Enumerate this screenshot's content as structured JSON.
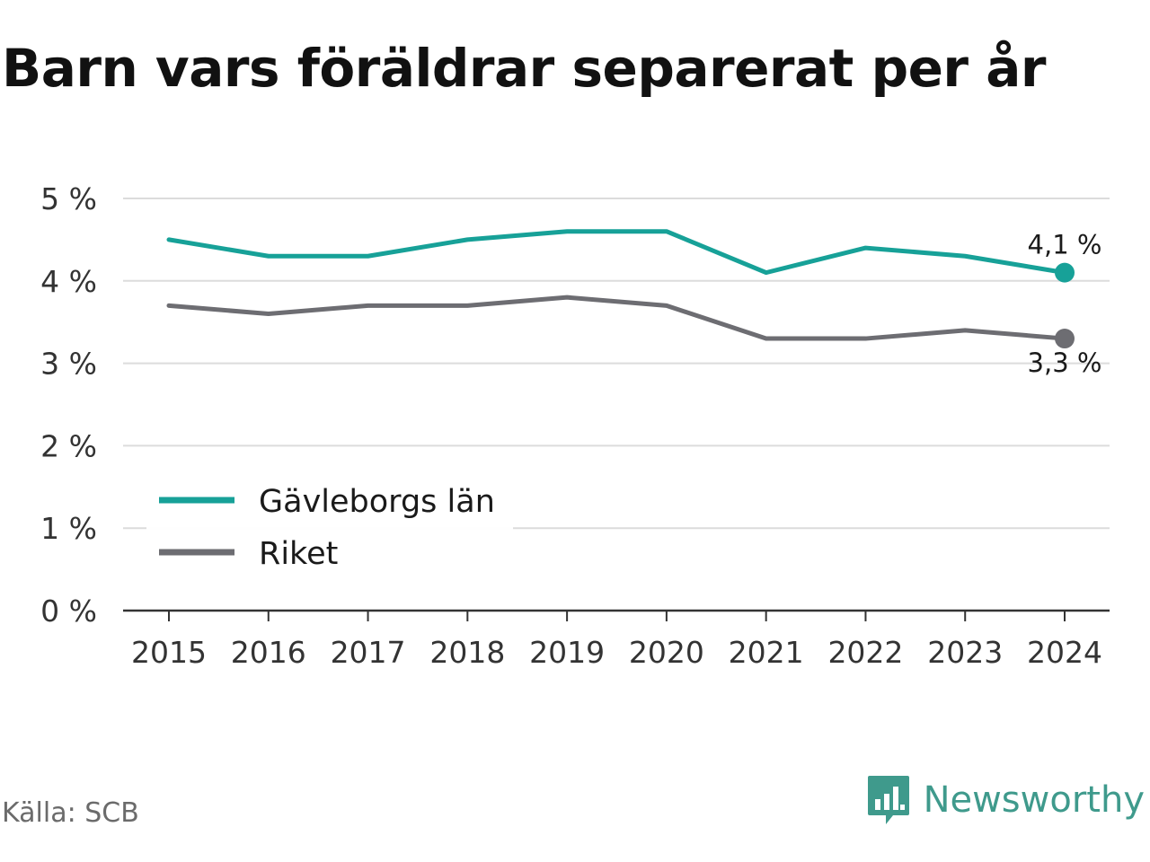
{
  "title": "Barn vars föräldrar separerat per år",
  "source": "Källa: SCB",
  "brand": {
    "name": "Newsworthy",
    "icon": "chart-speech-bubble-icon",
    "color": "#3f9a8c"
  },
  "chart_data": {
    "type": "line",
    "title": "Barn vars föräldrar separerat per år",
    "x": [
      "2015",
      "2016",
      "2017",
      "2018",
      "2019",
      "2020",
      "2021",
      "2022",
      "2023",
      "2024"
    ],
    "ylim": [
      0,
      5
    ],
    "yticks": [
      0,
      1,
      2,
      3,
      4,
      5
    ],
    "ytick_labels": [
      "0 %",
      "1 %",
      "2 %",
      "3 %",
      "4 %",
      "5 %"
    ],
    "grid": true,
    "legend": "bottom-left",
    "series": [
      {
        "name": "Gävleborgs län",
        "color": "#17a198",
        "values": [
          4.5,
          4.3,
          4.3,
          4.5,
          4.6,
          4.6,
          4.1,
          4.4,
          4.3,
          4.1
        ],
        "end_label": "4,1 %",
        "end_label_position": "above"
      },
      {
        "name": "Riket",
        "color": "#6d6d72",
        "values": [
          3.7,
          3.6,
          3.7,
          3.7,
          3.8,
          3.7,
          3.3,
          3.3,
          3.4,
          3.3
        ],
        "end_label": "3,3 %",
        "end_label_position": "below"
      }
    ]
  }
}
